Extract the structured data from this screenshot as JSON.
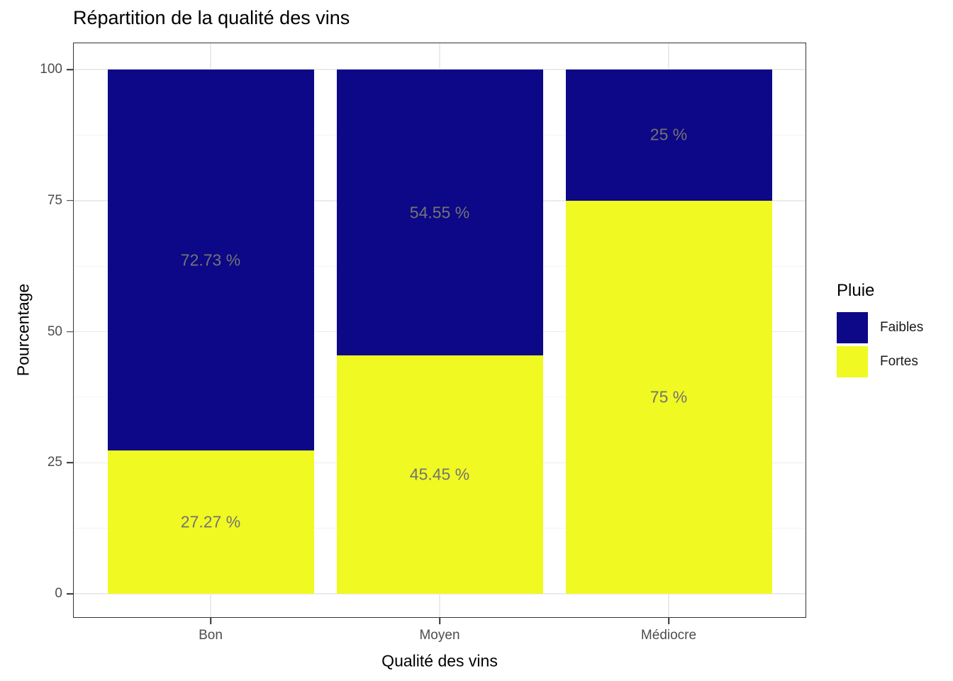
{
  "chart_data": {
    "type": "bar",
    "stacked": true,
    "percent_stacked": true,
    "title": "Répartition de la qualité des vins",
    "xlabel": "Qualité des vins",
    "ylabel": "Pourcentage",
    "categories": [
      "Bon",
      "Moyen",
      "Médiocre"
    ],
    "series": [
      {
        "name": "Fortes",
        "color": "#F0F921",
        "values": [
          27.27,
          45.45,
          75
        ],
        "labels": [
          "27.27 %",
          "45.45 %",
          "75 %"
        ]
      },
      {
        "name": "Faibles",
        "color": "#0D0887",
        "values": [
          72.73,
          54.55,
          25
        ],
        "labels": [
          "72.73 %",
          "54.55 %",
          "25 %"
        ]
      }
    ],
    "y_ticks": [
      0,
      25,
      50,
      75,
      100
    ],
    "y_minor_ticks": [
      12.5,
      37.5,
      62.5,
      87.5
    ],
    "ylim": [
      0,
      100
    ],
    "grid": true,
    "legend": {
      "title": "Pluie",
      "position": "right",
      "entries": [
        {
          "label": "Faibles",
          "color": "#0D0887"
        },
        {
          "label": "Fortes",
          "color": "#F0F921"
        }
      ]
    },
    "colors": {
      "bar_label_text": "#737373",
      "tick_label_text": "#4d4d4d",
      "panel_border": "#333333",
      "grid_major": "#ebebeb",
      "grid_minor": "#f4f4f4",
      "background": "#ffffff"
    }
  }
}
